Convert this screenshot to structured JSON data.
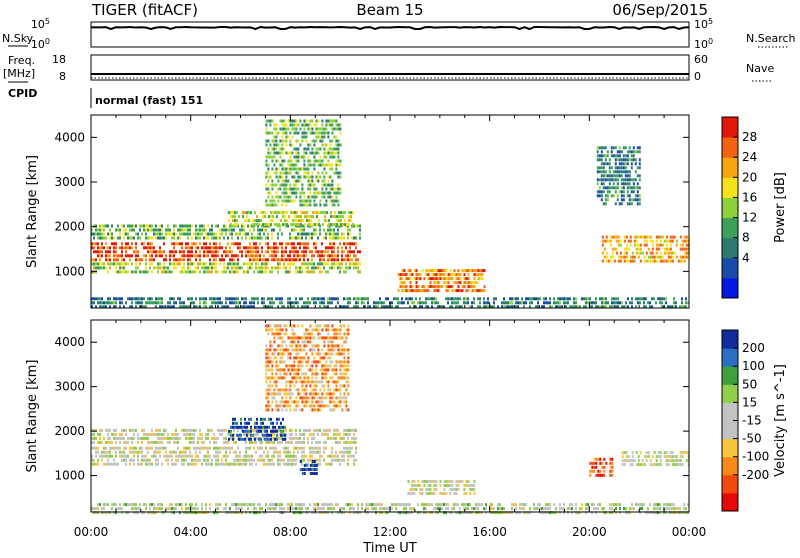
{
  "header": {
    "left_title": "TIGER (fitACF)",
    "center_title": "Beam 15",
    "right_title": "06/Sep/2015"
  },
  "strips": {
    "nsky_label": "N.Sky",
    "nsky_ticks": [
      "10^5",
      "10^0"
    ],
    "nsearch_label": "N.Search",
    "nsearch_ticks": [
      "10^5",
      "10^0"
    ],
    "freq_label": "Freq.",
    "freq_unit": "[MHz]",
    "freq_ticks": [
      "18",
      "8"
    ],
    "nave_label": "Nave",
    "nave_ticks": [
      "60",
      "0"
    ],
    "cpid_label": "CPID",
    "cpid_value": "normal (fast) 151"
  },
  "chart_data": [
    {
      "type": "heatmap",
      "panel": "power",
      "ylabel": "Slant Range [km]",
      "yticks": [
        "4000",
        "3000",
        "2000",
        "1000"
      ],
      "ylim": [
        180,
        4500
      ],
      "xlim_hours": [
        0,
        24
      ],
      "colorbar_label": "Power [dB]",
      "colorbar_ticks": [
        "28",
        "24",
        "20",
        "16",
        "12",
        "8",
        "4"
      ],
      "colors": [
        "#0018e0",
        "#1c4aa8",
        "#2d7a72",
        "#3aa05a",
        "#8cd03a",
        "#f5e11c",
        "#f8a514",
        "#f46312",
        "#e01a0a"
      ],
      "regions": [
        {
          "t": [
            0.0,
            10.8
          ],
          "r": [
            1250,
            1650
          ],
          "level": 0.88
        },
        {
          "t": [
            0.0,
            10.8
          ],
          "r": [
            1750,
            2050
          ],
          "level": 0.45
        },
        {
          "t": [
            0.0,
            10.8
          ],
          "r": [
            1000,
            1200
          ],
          "level": 0.55
        },
        {
          "t": [
            5.5,
            10.5
          ],
          "r": [
            2050,
            2350
          ],
          "level": 0.55
        },
        {
          "t": [
            7.0,
            10.0
          ],
          "r": [
            2500,
            4400
          ],
          "level": 0.45
        },
        {
          "t": [
            12.3,
            15.8
          ],
          "r": [
            550,
            1050
          ],
          "level": 0.78
        },
        {
          "t": [
            20.5,
            24.0
          ],
          "r": [
            1200,
            1800
          ],
          "level": 0.7
        },
        {
          "t": [
            20.3,
            22.0
          ],
          "r": [
            2500,
            3800
          ],
          "level": 0.3
        },
        {
          "t": [
            0.0,
            24.0
          ],
          "r": [
            180,
            420
          ],
          "level": 0.3
        }
      ]
    },
    {
      "type": "heatmap",
      "panel": "velocity",
      "ylabel": "Slant Range [km]",
      "yticks": [
        "4000",
        "3000",
        "2000",
        "1000"
      ],
      "ylim": [
        180,
        4500
      ],
      "xlim_hours": [
        0,
        24
      ],
      "xlabel": "Time UT",
      "xticks": [
        "00:00",
        "04:00",
        "08:00",
        "12:00",
        "16:00",
        "20:00",
        "00:00"
      ],
      "colorbar_label": "Velocity [m s^-1]",
      "colorbar_ticks": [
        "200",
        "100",
        "50",
        "15",
        "-15",
        "-50",
        "-100",
        "-200"
      ],
      "colors": [
        "#e40808",
        "#f04a0c",
        "#f8891a",
        "#f7c63e",
        "#c3c3c3",
        "#c3c3c3",
        "#8fd048",
        "#3ea03a",
        "#2a6fc0",
        "#102c9e"
      ],
      "regions": [
        {
          "t": [
            0.0,
            10.6
          ],
          "r": [
            1250,
            1650
          ],
          "level": 0.5
        },
        {
          "t": [
            0.0,
            10.6
          ],
          "r": [
            1750,
            2050
          ],
          "level": 0.5
        },
        {
          "t": [
            5.5,
            7.8
          ],
          "r": [
            1800,
            2300
          ],
          "level": 0.92
        },
        {
          "t": [
            8.3,
            9.1
          ],
          "r": [
            1050,
            1350
          ],
          "level": 0.95
        },
        {
          "t": [
            7.0,
            10.3
          ],
          "r": [
            2500,
            4400
          ],
          "level": 0.3
        },
        {
          "t": [
            12.7,
            15.4
          ],
          "r": [
            600,
            900
          ],
          "level": 0.5
        },
        {
          "t": [
            20.0,
            20.9
          ],
          "r": [
            1000,
            1400
          ],
          "level": 0.15
        },
        {
          "t": [
            21.3,
            24.0
          ],
          "r": [
            1200,
            1550
          ],
          "level": 0.5
        },
        {
          "t": [
            0.0,
            24.0
          ],
          "r": [
            180,
            380
          ],
          "level": 0.55
        }
      ]
    }
  ]
}
